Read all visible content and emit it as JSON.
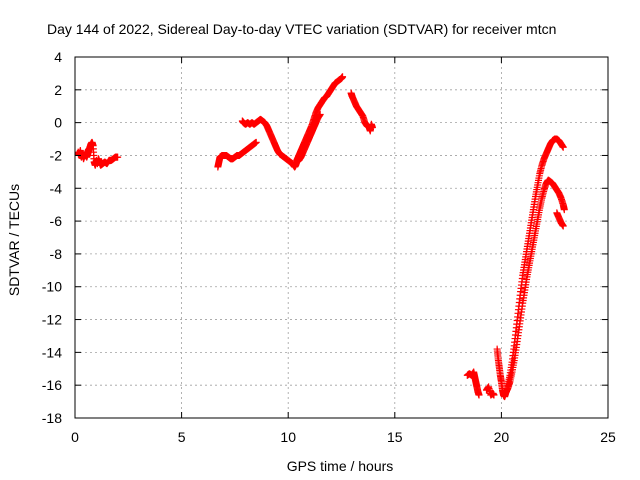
{
  "chart_data": {
    "type": "scatter",
    "title": "Day 144 of 2022, Sidereal Day-to-day VTEC variation (SDTVAR) for receiver mtcn",
    "xlabel": "GPS time / hours",
    "ylabel": "SDTVAR / TECUs",
    "xlim": [
      0,
      25
    ],
    "ylim": [
      -18,
      4
    ],
    "xticks": [
      0,
      5,
      10,
      15,
      20,
      25
    ],
    "yticks": [
      -18,
      -16,
      -14,
      -12,
      -10,
      -8,
      -6,
      -4,
      -2,
      0,
      2,
      4
    ],
    "grid": true,
    "marker": "plus",
    "color": "#ff0000",
    "series": [
      {
        "segments": [
          [
            [
              0.15,
              -1.8
            ],
            [
              0.2,
              -2.0
            ],
            [
              0.25,
              -1.7
            ],
            [
              0.3,
              -2.1
            ],
            [
              0.35,
              -1.9
            ],
            [
              0.4,
              -2.2
            ],
            [
              0.45,
              -2.0
            ],
            [
              0.5,
              -1.8
            ],
            [
              0.55,
              -2.1
            ],
            [
              0.6,
              -1.9
            ],
            [
              0.65,
              -1.7
            ],
            [
              0.7,
              -1.5
            ],
            [
              0.75,
              -1.3
            ],
            [
              0.8,
              -1.2
            ],
            [
              0.85,
              -1.4
            ],
            [
              0.9,
              -2.4
            ],
            [
              0.95,
              -2.6
            ],
            [
              1.0,
              -2.3
            ],
            [
              1.05,
              -2.5
            ],
            [
              1.1,
              -2.2
            ],
            [
              1.15,
              -2.4
            ],
            [
              1.2,
              -2.6
            ],
            [
              1.3,
              -2.5
            ],
            [
              1.4,
              -2.4
            ],
            [
              1.5,
              -2.5
            ],
            [
              1.6,
              -2.3
            ],
            [
              1.7,
              -2.3
            ],
            [
              1.8,
              -2.2
            ],
            [
              1.9,
              -2.1
            ],
            [
              2.0,
              -2.1
            ]
          ],
          [
            [
              6.7,
              -2.7
            ],
            [
              6.75,
              -2.4
            ],
            [
              6.8,
              -2.1
            ],
            [
              6.9,
              -2.0
            ],
            [
              7.0,
              -2.0
            ],
            [
              7.1,
              -2.0
            ],
            [
              7.2,
              -2.1
            ],
            [
              7.3,
              -2.2
            ],
            [
              7.4,
              -2.2
            ],
            [
              7.5,
              -2.1
            ],
            [
              7.6,
              -2.0
            ],
            [
              7.7,
              -2.0
            ],
            [
              7.8,
              -1.9
            ],
            [
              7.9,
              -1.8
            ],
            [
              8.0,
              -1.7
            ],
            [
              8.1,
              -1.6
            ],
            [
              8.2,
              -1.5
            ],
            [
              8.3,
              -1.4
            ],
            [
              8.4,
              -1.3
            ],
            [
              8.5,
              -1.2
            ]
          ],
          [
            [
              7.85,
              0.1
            ],
            [
              7.9,
              0.0
            ],
            [
              8.0,
              -0.1
            ],
            [
              8.1,
              0.0
            ],
            [
              8.2,
              -0.1
            ],
            [
              8.3,
              0.0
            ],
            [
              8.4,
              -0.1
            ],
            [
              8.5,
              0.0
            ],
            [
              8.6,
              0.1
            ],
            [
              8.7,
              0.2
            ],
            [
              8.8,
              0.1
            ],
            [
              8.9,
              0.0
            ],
            [
              9.0,
              -0.2
            ],
            [
              9.1,
              -0.5
            ],
            [
              9.2,
              -0.8
            ],
            [
              9.3,
              -1.1
            ],
            [
              9.4,
              -1.4
            ],
            [
              9.5,
              -1.7
            ],
            [
              9.6,
              -1.9
            ],
            [
              9.7,
              -2.0
            ],
            [
              9.8,
              -2.1
            ],
            [
              9.9,
              -2.2
            ],
            [
              10.0,
              -2.3
            ],
            [
              10.1,
              -2.4
            ],
            [
              10.2,
              -2.5
            ],
            [
              10.3,
              -2.7
            ],
            [
              10.35,
              -2.6
            ],
            [
              10.4,
              -2.4
            ],
            [
              10.5,
              -2.3
            ],
            [
              10.6,
              -2.1
            ],
            [
              10.7,
              -1.8
            ],
            [
              10.8,
              -1.5
            ],
            [
              10.9,
              -1.2
            ],
            [
              11.0,
              -0.9
            ],
            [
              11.1,
              -0.6
            ],
            [
              11.2,
              -0.3
            ],
            [
              11.3,
              0.0
            ],
            [
              11.4,
              0.3
            ],
            [
              11.5,
              0.5
            ]
          ],
          [
            [
              10.4,
              -2.3
            ],
            [
              10.5,
              -2.0
            ],
            [
              10.6,
              -1.7
            ],
            [
              10.7,
              -1.4
            ],
            [
              10.8,
              -1.1
            ],
            [
              10.9,
              -0.8
            ],
            [
              11.0,
              -0.5
            ],
            [
              11.1,
              -0.2
            ],
            [
              11.2,
              0.2
            ],
            [
              11.3,
              0.6
            ],
            [
              11.4,
              0.9
            ],
            [
              11.5,
              1.1
            ],
            [
              11.6,
              1.3
            ],
            [
              11.7,
              1.5
            ],
            [
              11.8,
              1.6
            ],
            [
              11.9,
              1.8
            ],
            [
              12.0,
              2.0
            ],
            [
              12.1,
              2.2
            ],
            [
              12.2,
              2.4
            ],
            [
              12.3,
              2.5
            ],
            [
              12.4,
              2.6
            ],
            [
              12.5,
              2.7
            ],
            [
              12.55,
              2.8
            ]
          ],
          [
            [
              12.95,
              1.8
            ],
            [
              13.0,
              1.6
            ],
            [
              13.1,
              1.3
            ],
            [
              13.2,
              1.0
            ],
            [
              13.3,
              0.8
            ],
            [
              13.4,
              0.6
            ],
            [
              13.5,
              0.4
            ],
            [
              13.6,
              0.0
            ],
            [
              13.7,
              -0.2
            ],
            [
              13.8,
              -0.3
            ],
            [
              13.85,
              -0.5
            ],
            [
              13.9,
              -0.1
            ],
            [
              13.95,
              -0.3
            ]
          ],
          [
            [
              18.4,
              -15.4
            ],
            [
              18.5,
              -15.3
            ],
            [
              18.6,
              -15.4
            ],
            [
              18.7,
              -15.2
            ],
            [
              18.75,
              -15.5
            ],
            [
              18.8,
              -15.8
            ],
            [
              18.85,
              -16.1
            ],
            [
              18.9,
              -16.4
            ],
            [
              18.95,
              -16.6
            ]
          ],
          [
            [
              19.3,
              -16.3
            ],
            [
              19.4,
              -16.1
            ],
            [
              19.5,
              -16.6
            ],
            [
              19.6,
              -16.5
            ],
            [
              19.65,
              -16.6
            ]
          ],
          [
            [
              19.8,
              -13.8
            ],
            [
              19.85,
              -14.4
            ],
            [
              19.9,
              -14.9
            ],
            [
              19.95,
              -15.4
            ],
            [
              20.0,
              -15.8
            ],
            [
              20.05,
              -16.3
            ],
            [
              20.1,
              -16.6
            ],
            [
              20.15,
              -16.7
            ],
            [
              20.2,
              -16.5
            ],
            [
              20.3,
              -16.2
            ],
            [
              20.4,
              -15.8
            ],
            [
              20.5,
              -15.2
            ],
            [
              20.6,
              -14.5
            ],
            [
              20.7,
              -13.7
            ],
            [
              20.8,
              -12.8
            ],
            [
              20.9,
              -11.9
            ],
            [
              21.0,
              -11.0
            ],
            [
              21.1,
              -10.2
            ],
            [
              21.2,
              -9.4
            ],
            [
              21.3,
              -8.7
            ],
            [
              21.4,
              -8.0
            ],
            [
              21.5,
              -7.3
            ],
            [
              21.6,
              -6.6
            ],
            [
              21.7,
              -5.9
            ],
            [
              21.8,
              -5.2
            ],
            [
              21.9,
              -4.6
            ],
            [
              22.0,
              -4.1
            ],
            [
              22.1,
              -3.7
            ],
            [
              22.2,
              -3.5
            ],
            [
              22.3,
              -3.6
            ],
            [
              22.4,
              -3.7
            ],
            [
              22.5,
              -3.9
            ],
            [
              22.6,
              -4.1
            ],
            [
              22.7,
              -4.3
            ],
            [
              22.8,
              -4.6
            ],
            [
              22.9,
              -5.0
            ],
            [
              22.95,
              -5.3
            ]
          ],
          [
            [
              20.3,
              -16.0
            ],
            [
              20.4,
              -15.4
            ],
            [
              20.5,
              -14.6
            ],
            [
              20.6,
              -13.6
            ],
            [
              20.7,
              -12.5
            ],
            [
              20.8,
              -11.4
            ],
            [
              20.9,
              -10.3
            ],
            [
              21.0,
              -9.3
            ],
            [
              21.1,
              -8.5
            ],
            [
              21.2,
              -7.7
            ],
            [
              21.3,
              -6.9
            ],
            [
              21.4,
              -6.1
            ],
            [
              21.5,
              -5.3
            ],
            [
              21.6,
              -4.5
            ],
            [
              21.7,
              -3.8
            ],
            [
              21.8,
              -3.1
            ],
            [
              21.9,
              -2.6
            ],
            [
              22.0,
              -2.2
            ],
            [
              22.1,
              -1.9
            ],
            [
              22.2,
              -1.6
            ],
            [
              22.3,
              -1.3
            ],
            [
              22.4,
              -1.1
            ],
            [
              22.5,
              -1.0
            ],
            [
              22.6,
              -1.0
            ],
            [
              22.7,
              -1.1
            ],
            [
              22.8,
              -1.3
            ],
            [
              22.9,
              -1.5
            ]
          ],
          [
            [
              22.6,
              -5.5
            ],
            [
              22.7,
              -5.8
            ],
            [
              22.8,
              -6.1
            ],
            [
              22.9,
              -6.3
            ]
          ]
        ]
      }
    ]
  }
}
